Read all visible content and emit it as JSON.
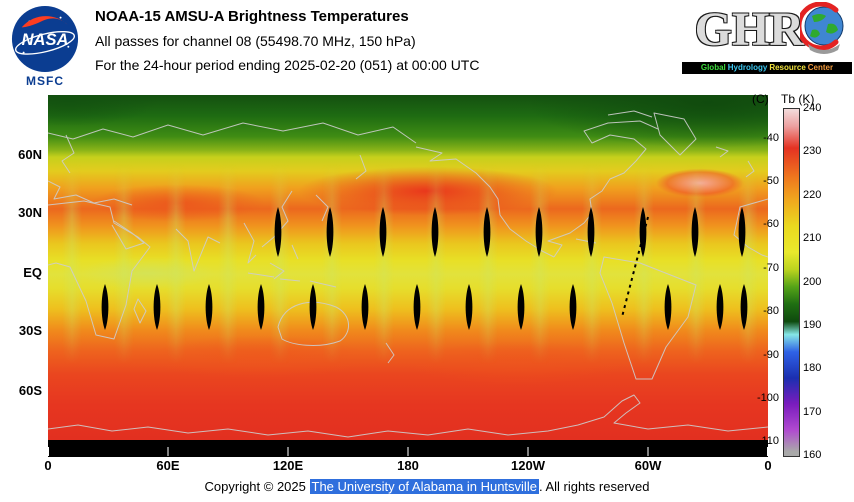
{
  "header": {
    "title": "NOAA-15 AMSU-A Brightness Temperatures",
    "subtitle_channel": "All passes for channel 08 (55498.70 MHz, 150 hPa)",
    "subtitle_period": "For the 24-hour period ending 2025-02-20 (051) at 00:00 UTC",
    "nasa_wordmark": "NASA",
    "msfc_label": "MSFC",
    "ghrc_name": "GHRC",
    "ghrc_letters": "GHR",
    "ghrc_tagline_words": [
      {
        "text": "Global",
        "color": "#3ddc3d"
      },
      {
        "text": "Hydrology",
        "color": "#3dc8f0"
      },
      {
        "text": "Resource",
        "color": "#f0e23d"
      },
      {
        "text": "Center",
        "color": "#f09a3d"
      }
    ]
  },
  "map": {
    "y_ticks": [
      "60N",
      "30N",
      "EQ",
      "30S",
      "60S"
    ],
    "x_ticks": [
      "0",
      "60E",
      "120E",
      "180",
      "120W",
      "60W",
      "0"
    ]
  },
  "colorbar": {
    "label_c": "(C)",
    "label_k": "Tb (K)",
    "k_ticks": [
      "240",
      "230",
      "220",
      "210",
      "200",
      "190",
      "180",
      "170",
      "160"
    ],
    "c_ticks": [
      "-40",
      "-50",
      "-60",
      "-70",
      "-80",
      "-90",
      "-100",
      "-110"
    ]
  },
  "footer": {
    "prefix": "Copyright © 2025 ",
    "link": "The University of Alabama in Huntsville",
    "suffix": ". All rights reserved"
  },
  "chart_data": {
    "type": "heatmap",
    "title": "NOAA-15 AMSU-A Brightness Temperatures",
    "subtitle": "All passes for channel 08 (55498.70 MHz, 150 hPa), 24-hour period ending 2025-02-20 (051) at 00:00 UTC",
    "projection": "equirectangular world map, longitude 0E eastward to 360 (0), latitude ~90N to ~85S",
    "x_axis": {
      "label": "longitude",
      "tick_labels": [
        "0",
        "60E",
        "120E",
        "180",
        "120W",
        "60W",
        "0"
      ]
    },
    "y_axis": {
      "label": "latitude",
      "tick_labels": [
        "60N",
        "30N",
        "EQ",
        "30S",
        "60S"
      ]
    },
    "colorbar": {
      "quantity": "Brightness temperature Tb",
      "units_right": "K",
      "units_left": "C",
      "range_k": [
        160,
        240
      ],
      "k_ticks": [
        240,
        230,
        220,
        210,
        200,
        190,
        180,
        170,
        160
      ],
      "c_ticks": [
        -40,
        -50,
        -60,
        -70,
        -80,
        -90,
        -100,
        -110
      ],
      "stops_top_to_bottom": [
        {
          "k": 240,
          "color": "#f3dcdc"
        },
        {
          "k": 236,
          "color": "#eda0a0"
        },
        {
          "k": 231,
          "color": "#e43222"
        },
        {
          "k": 224,
          "color": "#ef7a1e"
        },
        {
          "k": 219,
          "color": "#f0a81e"
        },
        {
          "k": 213,
          "color": "#ead91f"
        },
        {
          "k": 207,
          "color": "#e9e92c"
        },
        {
          "k": 203,
          "color": "#bcd31f"
        },
        {
          "k": 199,
          "color": "#55a318"
        },
        {
          "k": 195,
          "color": "#1f6e12"
        },
        {
          "k": 191,
          "color": "#0e4a0e"
        },
        {
          "k": 188,
          "color": "#86e6e6"
        },
        {
          "k": 184,
          "color": "#2f62e5"
        },
        {
          "k": 178,
          "color": "#1b2fb0"
        },
        {
          "k": 172,
          "color": "#7a1cbd"
        },
        {
          "k": 166,
          "color": "#b04ad0"
        },
        {
          "k": 161,
          "color": "#a9a9a9"
        }
      ]
    },
    "approx_zonal_mean_tb_k": [
      {
        "lat": 85,
        "tb_k": 196
      },
      {
        "lat": 70,
        "tb_k": 203
      },
      {
        "lat": 55,
        "tb_k": 212
      },
      {
        "lat": 40,
        "tb_k": 226
      },
      {
        "lat": 30,
        "tb_k": 224
      },
      {
        "lat": 15,
        "tb_k": 215
      },
      {
        "lat": 0,
        "tb_k": 212
      },
      {
        "lat": -15,
        "tb_k": 216
      },
      {
        "lat": -30,
        "tb_k": 223
      },
      {
        "lat": -45,
        "tb_k": 228
      },
      {
        "lat": -60,
        "tb_k": 231
      },
      {
        "lat": -80,
        "tb_k": 232
      }
    ],
    "gap_rows": [
      {
        "cy": 137,
        "h": 50,
        "xs": [
          230,
          282,
          335,
          387,
          439,
          491,
          543,
          595,
          647,
          694
        ]
      },
      {
        "cy": 212,
        "h": 46,
        "xs": [
          57,
          109,
          161,
          213,
          265,
          317,
          369,
          421,
          473,
          525,
          620,
          672,
          696
        ]
      }
    ],
    "artifact_line": {
      "x1": 600,
      "y1": 122,
      "x2": 574,
      "y2": 222
    },
    "notes": "Black lens shapes are coverage gaps between adjacent satellite swaths near 25N and 20S; the strip south of ~85S has no data (black)."
  }
}
